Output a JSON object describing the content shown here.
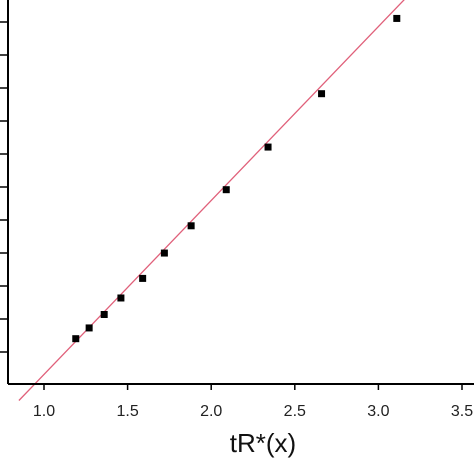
{
  "chart_data": {
    "type": "scatter",
    "title": "",
    "xlabel": "tR*(x)",
    "ylabel": "",
    "xlim": [
      0.85,
      3.57
    ],
    "ylim": [
      0,
      1
    ],
    "x_ticks": [
      1.0,
      1.5,
      2.0,
      2.5,
      3.0,
      3.5
    ],
    "x_tick_labels": [
      "1.0",
      "1.5",
      "2.0",
      "2.5",
      "3.0",
      "3.5"
    ],
    "y_tick_count": 11,
    "y_tick_labels_visible": false,
    "grid": false,
    "series": [
      {
        "kind": "points",
        "marker": "square",
        "color": "#000000",
        "x": [
          1.19,
          1.27,
          1.36,
          1.46,
          1.59,
          1.72,
          1.88,
          2.09,
          2.34,
          2.66,
          3.11
        ],
        "y": [
          0.118,
          0.146,
          0.181,
          0.224,
          0.275,
          0.341,
          0.412,
          0.506,
          0.617,
          0.756,
          0.952
        ]
      },
      {
        "kind": "fit-line",
        "color": "#e0607a",
        "x": [
          0.85,
          3.57
        ],
        "y": [
          -0.043,
          1.189
        ]
      }
    ]
  }
}
